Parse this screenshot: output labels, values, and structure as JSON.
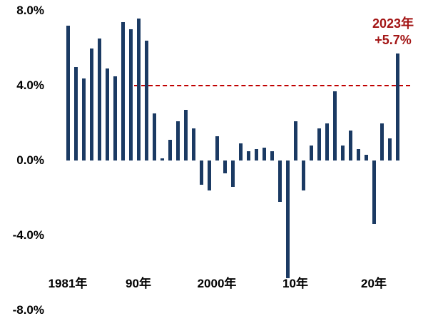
{
  "chart_data": {
    "type": "bar",
    "title": "",
    "xlabel": "",
    "ylabel": "",
    "ylim": [
      -8,
      8
    ],
    "grid": false,
    "bar_color": "#1b3a63",
    "years": [
      1981,
      1982,
      1983,
      1984,
      1985,
      1986,
      1987,
      1988,
      1989,
      1990,
      1991,
      1992,
      1993,
      1994,
      1995,
      1996,
      1997,
      1998,
      1999,
      2000,
      2001,
      2002,
      2003,
      2004,
      2005,
      2006,
      2007,
      2008,
      2009,
      2010,
      2011,
      2012,
      2013,
      2014,
      2015,
      2016,
      2017,
      2018,
      2019,
      2020,
      2021,
      2022,
      2023
    ],
    "values": [
      7.2,
      5.0,
      4.4,
      6.0,
      6.5,
      4.9,
      4.5,
      7.4,
      7.0,
      7.6,
      6.4,
      2.5,
      0.1,
      1.1,
      2.1,
      2.7,
      1.7,
      -1.3,
      -1.6,
      1.3,
      -0.7,
      -1.4,
      0.9,
      0.5,
      0.6,
      0.7,
      0.5,
      -2.2,
      -6.3,
      2.1,
      -1.6,
      0.8,
      1.7,
      2.0,
      3.7,
      0.8,
      1.6,
      0.6,
      0.3,
      -3.4,
      2.0,
      1.2,
      5.7
    ],
    "y_ticks": [
      {
        "label": "8.0%",
        "value": 8
      },
      {
        "label": "4.0%",
        "value": 4
      },
      {
        "label": "0.0%",
        "value": 0
      },
      {
        "label": "-4.0%",
        "value": -4
      },
      {
        "label": "-8.0%",
        "value": -8
      }
    ],
    "x_ticks": [
      {
        "label": "1981年",
        "year": 1981
      },
      {
        "label": "90年",
        "year": 1990
      },
      {
        "label": "2000年",
        "year": 2000
      },
      {
        "label": "10年",
        "year": 2010
      },
      {
        "label": "20年",
        "year": 2020
      }
    ],
    "reference_line": {
      "value": 4.0,
      "color": "#c00000",
      "style": "dashed"
    },
    "annotation": {
      "line1": "2023年",
      "line2": "+5.7%",
      "color": "#a31515",
      "year": 2023,
      "value": 5.7
    }
  }
}
